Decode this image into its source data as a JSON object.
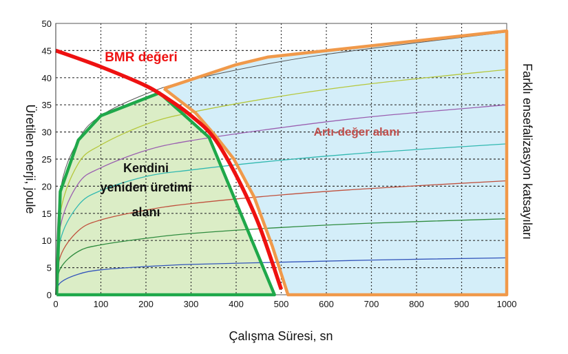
{
  "chart_data": {
    "type": "line",
    "title": "",
    "xlabel": "Çalışma Süresi, sn",
    "ylabel": "Üretilen enerji, joule",
    "y2label": "Farklı ensefalizasyon katsayıları",
    "xlim": [
      0,
      1000
    ],
    "ylim": [
      0,
      50
    ],
    "grid": true,
    "x_ticks": [
      0,
      100,
      200,
      300,
      400,
      500,
      600,
      700,
      800,
      900,
      1000
    ],
    "y_ticks": [
      0,
      5,
      10,
      15,
      20,
      25,
      30,
      35,
      40,
      45,
      50
    ],
    "series": [
      {
        "name": "curve-1",
        "color": "#3355bb",
        "x": [
          0,
          10,
          50,
          100,
          200,
          300,
          500,
          700,
          1000
        ],
        "values": [
          0,
          2.2,
          3.8,
          4.6,
          5.2,
          5.6,
          6.0,
          6.4,
          6.8
        ]
      },
      {
        "name": "curve-2",
        "color": "#2e8b3e",
        "x": [
          0,
          10,
          50,
          100,
          200,
          300,
          500,
          700,
          1000
        ],
        "values": [
          0,
          4.8,
          8.0,
          9.2,
          10.4,
          11.3,
          12.4,
          13.2,
          14.0
        ]
      },
      {
        "name": "curve-3",
        "color": "#c0503c",
        "x": [
          0,
          10,
          50,
          100,
          200,
          300,
          500,
          700,
          1000
        ],
        "values": [
          0,
          7.0,
          11.8,
          13.8,
          15.6,
          16.8,
          18.4,
          19.6,
          21.0
        ]
      },
      {
        "name": "curve-4",
        "color": "#30b8b0",
        "x": [
          0,
          10,
          50,
          100,
          200,
          300,
          500,
          700,
          1000
        ],
        "values": [
          0,
          10.0,
          16.5,
          19.2,
          21.8,
          23.0,
          24.8,
          26.2,
          27.8
        ]
      },
      {
        "name": "curve-5",
        "color": "#9a5fb0",
        "x": [
          0,
          10,
          50,
          100,
          200,
          300,
          500,
          700,
          1000
        ],
        "values": [
          0,
          12.5,
          20.5,
          23.4,
          26.6,
          28.4,
          30.8,
          32.8,
          35.0
        ]
      },
      {
        "name": "curve-6",
        "color": "#b5c73a",
        "x": [
          0,
          10,
          50,
          100,
          200,
          300,
          500,
          700,
          1000
        ],
        "values": [
          0,
          15.0,
          24.2,
          27.6,
          31.4,
          33.6,
          36.6,
          38.9,
          41.5
        ]
      },
      {
        "name": "curve-7",
        "color": "#555555",
        "x": [
          0,
          10,
          50,
          100,
          200,
          300,
          500,
          700,
          1000
        ],
        "values": [
          0,
          19.0,
          28.5,
          33.0,
          37.0,
          39.6,
          43.0,
          45.4,
          48.4
        ]
      },
      {
        "name": "BMR değeri",
        "color": "#ee1111",
        "x": [
          0,
          100,
          200,
          250,
          300,
          350,
          400,
          450,
          500
        ],
        "values": [
          45,
          42,
          38.5,
          36,
          33,
          29,
          22,
          13,
          1
        ]
      }
    ],
    "regions": [
      {
        "name": "Kendini yeniden üretimi alanı",
        "fill": "#dbedc6",
        "stroke": "#1fa84a",
        "x": [
          2,
          10,
          50,
          100,
          230,
          340,
          485,
          2
        ],
        "values": [
          0,
          19,
          28.5,
          33,
          37.2,
          29,
          0,
          0
        ]
      },
      {
        "name": "Artı-değer alanı",
        "fill": "#d4eef9",
        "stroke": "#f0994a",
        "x": [
          240,
          400,
          470,
          1000,
          1000,
          515,
          480,
          440,
          395,
          355,
          310,
          240
        ],
        "values": [
          38,
          42.4,
          43.8,
          48.6,
          0,
          0,
          9,
          18,
          25,
          29.2,
          33.5,
          38
        ]
      }
    ],
    "annotations": [
      {
        "text": "BMR değeri",
        "x": 185,
        "y": 43.5,
        "color": "#ee1111"
      },
      {
        "text": "Kendini",
        "x": 200,
        "y": 22.5,
        "color": "#111111"
      },
      {
        "text": "yeniden üretimi",
        "x": 200,
        "y": 18.8,
        "color": "#111111"
      },
      {
        "text": "alanı",
        "x": 200,
        "y": 15.2,
        "color": "#111111"
      },
      {
        "text": "Artı-değer alanı",
        "x": 585,
        "y": 29.5,
        "color": "#c0504d"
      }
    ]
  },
  "labels": {
    "bmr": "BMR değeri",
    "region_green_1": "Kendini",
    "region_green_2": "yeniden üretimi",
    "region_green_3": "alanı",
    "region_blue": "Artı-değer alanı",
    "xlabel": "Çalışma Süresi, sn",
    "ylabel": "Üretilen enerji, joule",
    "y2label": "Farklı ensefalizasyon katsayıları"
  }
}
